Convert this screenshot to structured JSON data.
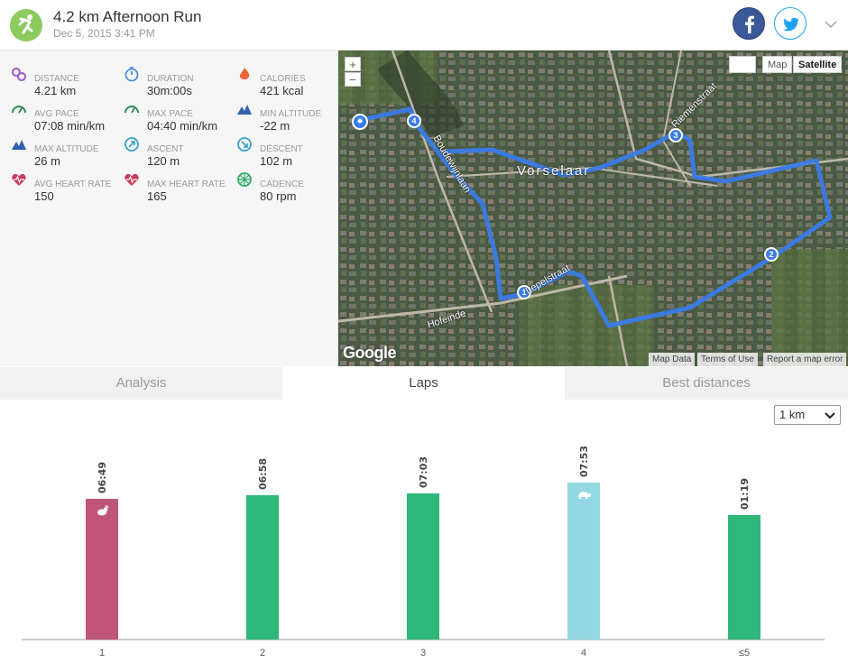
{
  "header": {
    "title": "4.2 km Afternoon Run",
    "subtitle": "Dec 5, 2015 3:41 PM"
  },
  "stats": [
    {
      "label": "DISTANCE",
      "value": "4.21 km",
      "icon": "route-pin-icon",
      "color": "#a066c8"
    },
    {
      "label": "DURATION",
      "value": "30m:00s",
      "icon": "stopwatch-icon",
      "color": "#4a90d9"
    },
    {
      "label": "CALORIES",
      "value": "421 kcal",
      "icon": "flame-icon",
      "color": "#f0643c"
    },
    {
      "label": "AVG PACE",
      "value": "07:08 min/km",
      "icon": "speedometer-icon",
      "color": "#2e8b57"
    },
    {
      "label": "MAX PACE",
      "value": "04:40 min/km",
      "icon": "speedometer-icon",
      "color": "#2e8b57"
    },
    {
      "label": "MIN ALTITUDE",
      "value": "-22 m",
      "icon": "mountain-icon",
      "color": "#3060b0"
    },
    {
      "label": "MAX ALTITUDE",
      "value": "26 m",
      "icon": "mountain-icon",
      "color": "#3060b0"
    },
    {
      "label": "ASCENT",
      "value": "120 m",
      "icon": "ascent-icon",
      "color": "#3aa0c8"
    },
    {
      "label": "DESCENT",
      "value": "102 m",
      "icon": "descent-icon",
      "color": "#3aa0c8"
    },
    {
      "label": "AVG HEART RATE",
      "value": "150",
      "icon": "heart-icon",
      "color": "#c83c5a"
    },
    {
      "label": "MAX HEART RATE",
      "value": "165",
      "icon": "heart-icon",
      "color": "#c83c5a"
    },
    {
      "label": "CADENCE",
      "value": "80 rpm",
      "icon": "cadence-icon",
      "color": "#2eaa6a"
    }
  ],
  "map": {
    "zoom_in": "+",
    "zoom_out": "−",
    "type_map": "Map",
    "type_satellite": "Satellite",
    "logo": "Google",
    "footer_data": "Map Data",
    "footer_terms": "Terms of Use",
    "footer_report": "Report a map error",
    "town_label": "Vorselaar",
    "road_hofeinde": "Hofeinde",
    "road_riemenstraat": "Riemenstraat",
    "road_lepelstraat": "Lepelstraat",
    "road_boudewijnlaan": "Boudewijnlaan",
    "markers": [
      "1",
      "2",
      "3",
      "4"
    ]
  },
  "tabs": {
    "analysis": "Analysis",
    "laps": "Laps",
    "best": "Best distances"
  },
  "unit_select": {
    "value": "1 km"
  },
  "chart_data": {
    "type": "bar",
    "categories": [
      "1",
      "2",
      "3",
      "4",
      "≤5"
    ],
    "values_label": [
      "06:49",
      "06:58",
      "07:03",
      "07:53",
      "01:19"
    ],
    "values_seconds": [
      409,
      418,
      423,
      473,
      79
    ],
    "bar_heights_relative": [
      0.78,
      0.8,
      0.81,
      0.87,
      0.69
    ],
    "colors": [
      "#c0557a",
      "#2fb87a",
      "#2fb87a",
      "#94d8e4",
      "#2fb87a"
    ],
    "markers": [
      "rabbit-icon",
      "",
      "",
      "turtle-icon",
      ""
    ],
    "legend": "none",
    "grid": false
  }
}
